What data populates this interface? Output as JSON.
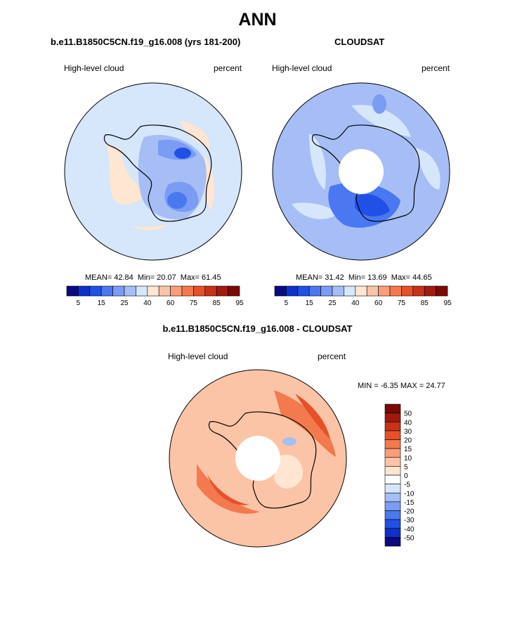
{
  "title": "ANN",
  "panels": [
    {
      "id": "model",
      "heading": "b.e11.B1850C5CN.f19_g16.008 (yrs 181-200)",
      "left_label": "High-level cloud",
      "right_label": "percent",
      "stats": {
        "mean": "MEAN=  42.84",
        "min": "Min=  20.07",
        "max": "Max=  61.45"
      }
    },
    {
      "id": "obs",
      "heading": "CLOUDSAT",
      "left_label": "High-level cloud",
      "right_label": "percent",
      "stats": {
        "mean": "MEAN=  31.42",
        "min": "Min=  13.69",
        "max": "Max=  44.65"
      }
    },
    {
      "id": "diff",
      "heading": "b.e11.B1850C5CN.f19_g16.008 - CLOUDSAT",
      "left_label": "High-level cloud",
      "right_label": "percent",
      "stats": {
        "minmax": "MIN =  -6.35 MAX =  24.77"
      }
    }
  ],
  "colorbar_abs": {
    "colors": [
      "#0a0a80",
      "#1030c8",
      "#2050e6",
      "#4a78f0",
      "#7a9cf2",
      "#a6bef5",
      "#d6e6fb",
      "#ffe6d2",
      "#fcc4a6",
      "#fa9e78",
      "#f27a4e",
      "#e8502a",
      "#c83218",
      "#a21a0e",
      "#7a0a06"
    ],
    "tick_labels": [
      "5",
      "15",
      "25",
      "40",
      "60",
      "75",
      "85",
      "95"
    ]
  },
  "colorbar_diff": {
    "colors": [
      "#0a0a80",
      "#1030c8",
      "#2050e6",
      "#4a78f0",
      "#7a9cf2",
      "#a6bef5",
      "#d6e6fb",
      "#ffffff",
      "#ffe6d2",
      "#fcc4a6",
      "#fa9e78",
      "#f27a4e",
      "#e8502a",
      "#c83218",
      "#a21a0e",
      "#7a0a06"
    ],
    "tick_labels": [
      "50",
      "40",
      "30",
      "20",
      "15",
      "10",
      "5",
      "0",
      "-5",
      "-10",
      "-15",
      "-20",
      "-30",
      "-40",
      "-50"
    ]
  },
  "map_colors": {
    "model_background": "#d6e6fb",
    "obs_background": "#a6bef5",
    "diff_background": "#fcc4a6",
    "coast": "#000000"
  }
}
